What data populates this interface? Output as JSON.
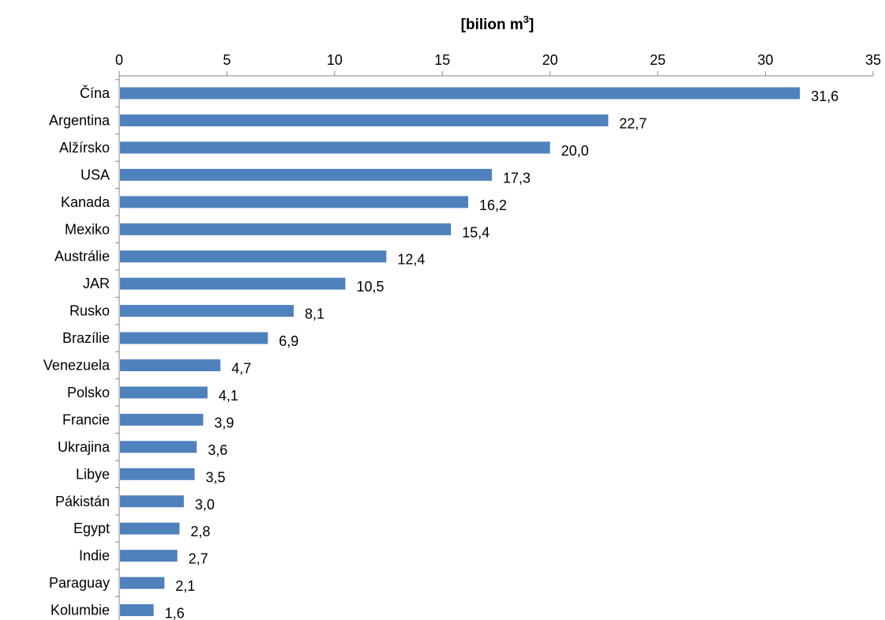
{
  "chart_data": {
    "type": "bar",
    "orientation": "horizontal",
    "axis_title": {
      "main": "[bilion m",
      "sup": "3",
      "close": "]"
    },
    "x_axis_position": "top",
    "xlim": [
      0,
      35
    ],
    "x_ticks": [
      0,
      5,
      10,
      15,
      20,
      25,
      30,
      35
    ],
    "x_tick_labels": [
      "0",
      "5",
      "10",
      "15",
      "20",
      "25",
      "30",
      "35"
    ],
    "grid": false,
    "legend": "none",
    "bar_color": "#4F81BD",
    "categories": [
      "Čína",
      "Argentina",
      "Alžírsko",
      "USA",
      "Kanada",
      "Mexiko",
      "Austrálie",
      "JAR",
      "Rusko",
      "Brazílie",
      "Venezuela",
      "Polsko",
      "Francie",
      "Ukrajina",
      "Libye",
      "Pákistán",
      "Egypt",
      "Indie",
      "Paraguay",
      "Kolumbie"
    ],
    "values": [
      31.6,
      22.7,
      20.0,
      17.3,
      16.2,
      15.4,
      12.4,
      10.5,
      8.1,
      6.9,
      4.7,
      4.1,
      3.9,
      3.6,
      3.5,
      3.0,
      2.8,
      2.7,
      2.1,
      1.6
    ],
    "value_labels": [
      "31,6",
      "22,7",
      "20,0",
      "17,3",
      "16,2",
      "15,4",
      "12,4",
      "10,5",
      "8,1",
      "6,9",
      "4,7",
      "4,1",
      "3,9",
      "3,6",
      "3,5",
      "3,0",
      "2,8",
      "2,7",
      "2,1",
      "1,6"
    ]
  }
}
